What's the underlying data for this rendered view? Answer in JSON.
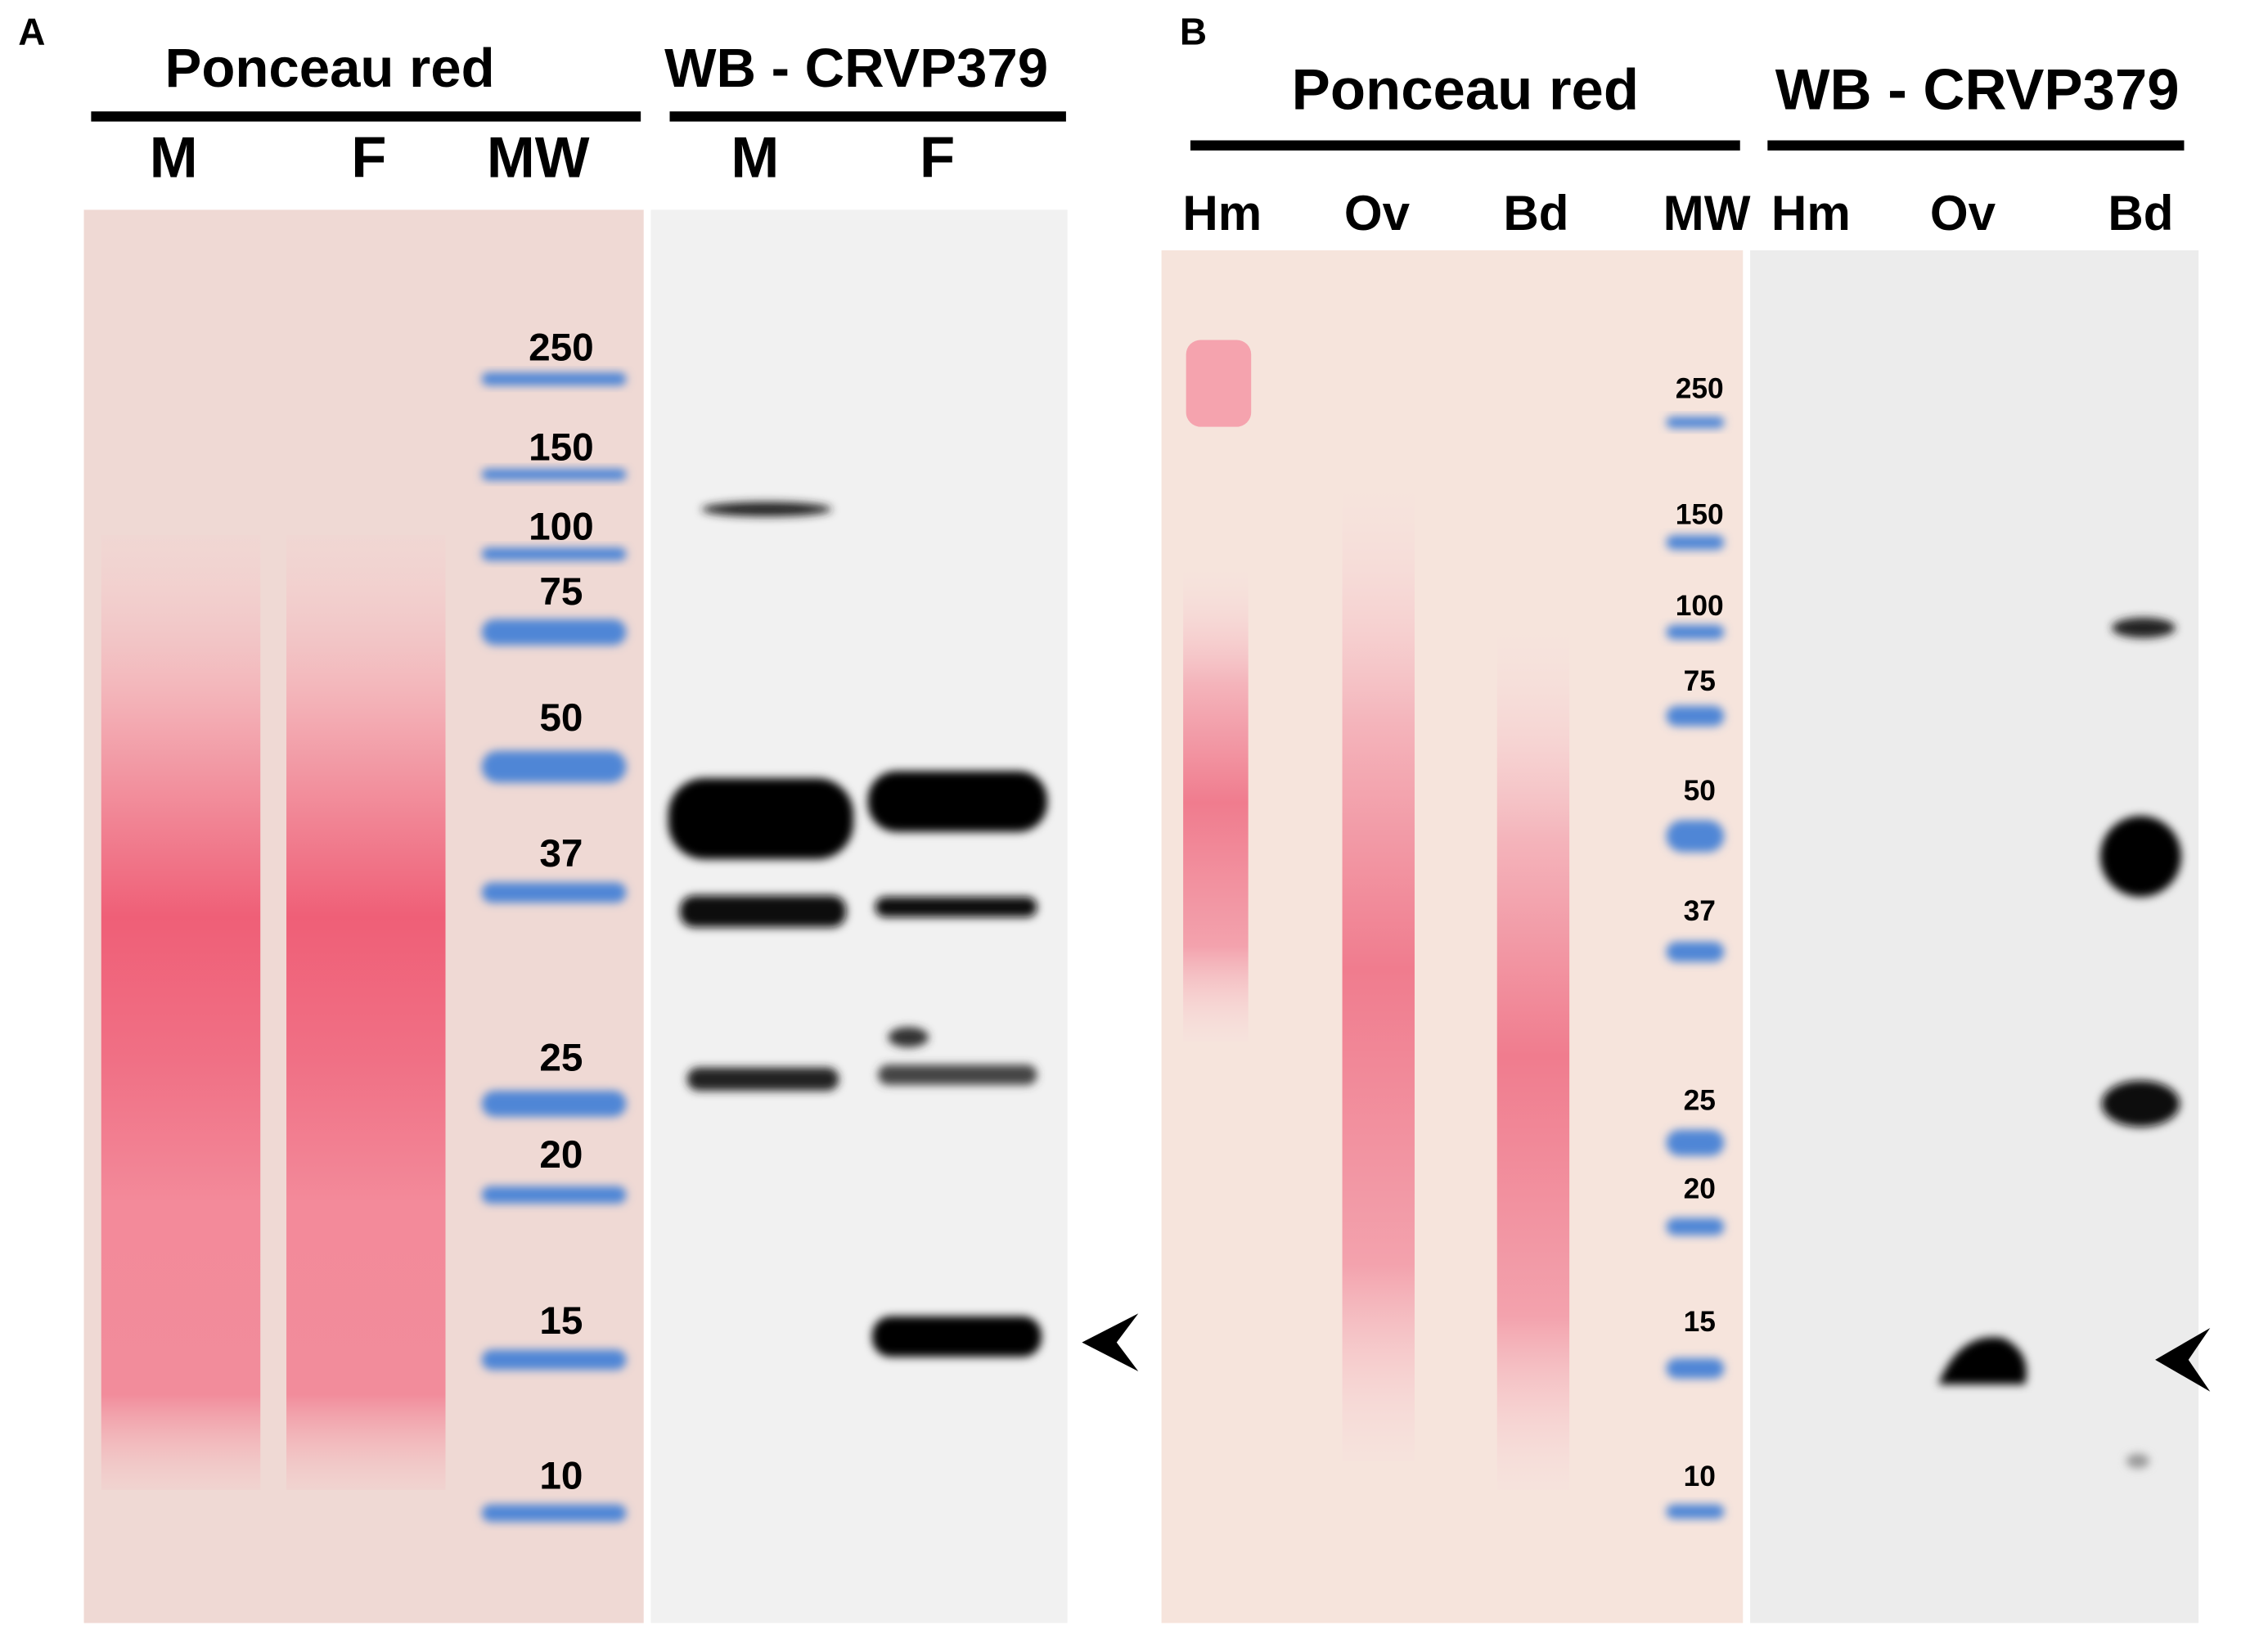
{
  "panels": [
    {
      "label": "A",
      "groups": [
        {
          "title": "Ponceau red",
          "lanes": [
            "M",
            "F",
            "MW"
          ]
        },
        {
          "title": "WB - CRVP379",
          "lanes": [
            "M",
            "F"
          ]
        }
      ],
      "markers": [
        "250",
        "150",
        "100",
        "75",
        "50",
        "37",
        "25",
        "20",
        "15",
        "10"
      ]
    },
    {
      "label": "B",
      "groups": [
        {
          "title": "Ponceau red",
          "lanes": [
            "Hm",
            "Ov",
            "Bd",
            "MW"
          ]
        },
        {
          "title": "WB - CRVP379",
          "lanes": [
            "Hm",
            "Ov",
            "Bd"
          ]
        }
      ],
      "markers": [
        "250",
        "150",
        "100",
        "75",
        "50",
        "37",
        "25",
        "20",
        "15",
        "10"
      ]
    }
  ]
}
